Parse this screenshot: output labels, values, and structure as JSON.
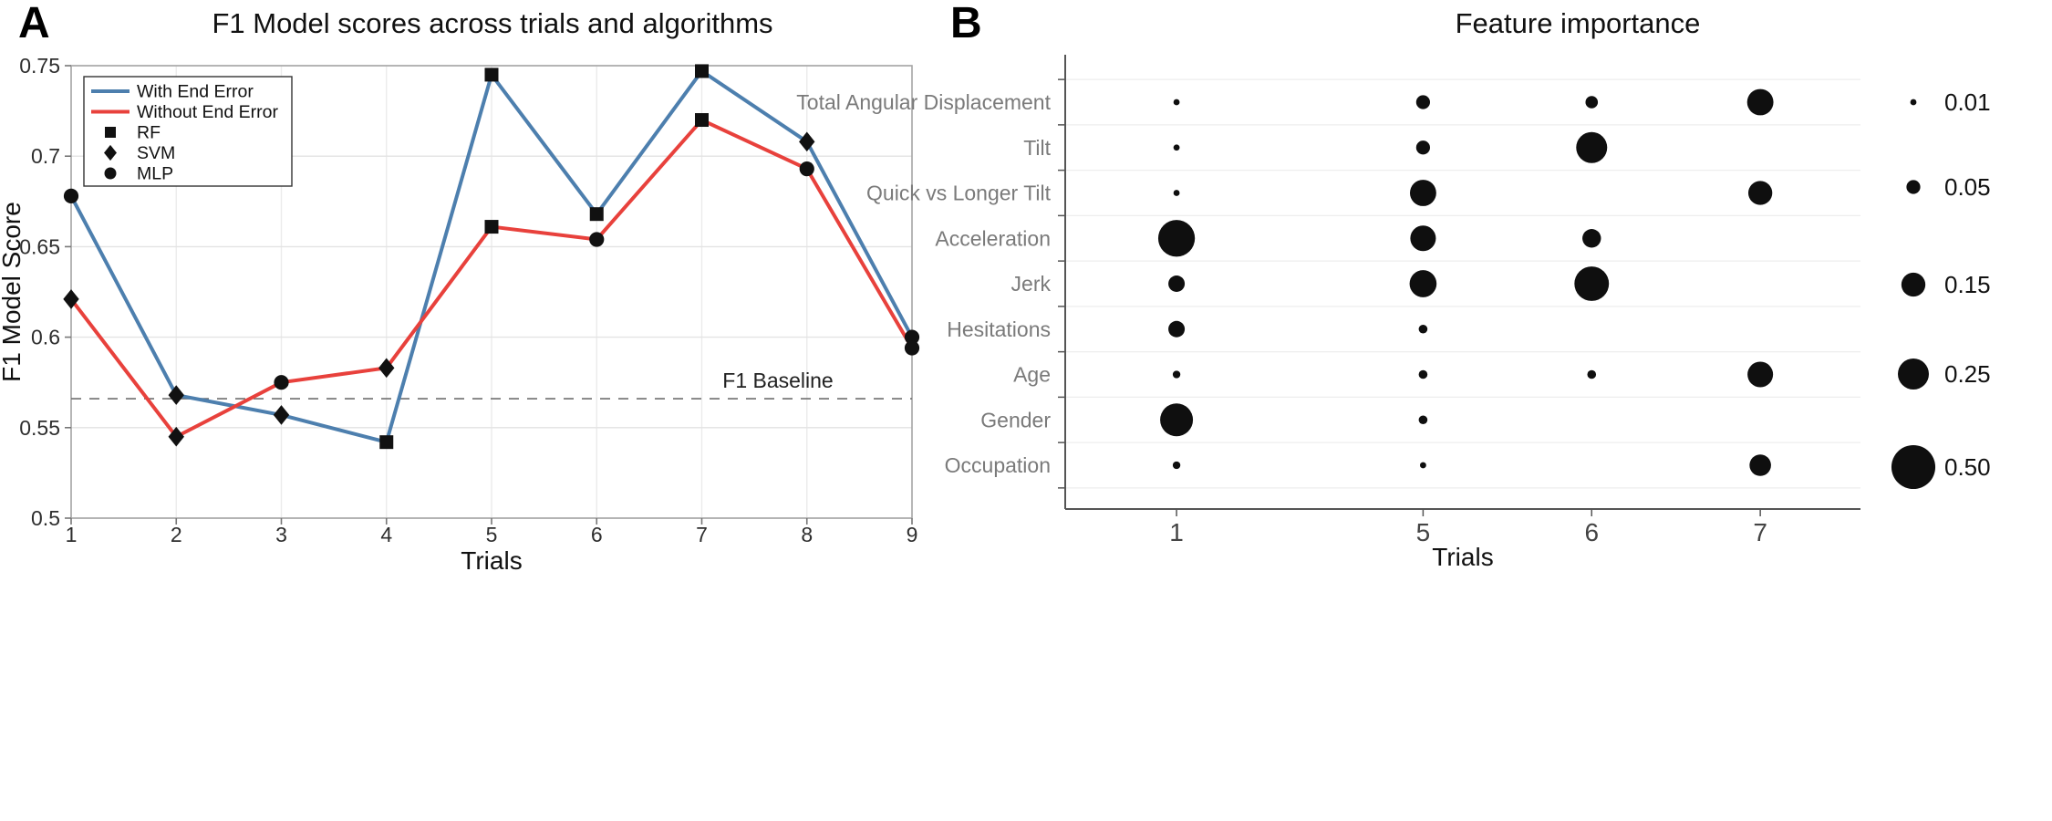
{
  "panels": {
    "a_label": "A",
    "b_label": "B"
  },
  "chart_data": [
    {
      "type": "line",
      "title": "F1 Model scores across trials and algorithms",
      "xlabel": "Trials",
      "ylabel": "F1 Model Score",
      "x": [
        1,
        2,
        3,
        4,
        5,
        6,
        7,
        8,
        9
      ],
      "x_tick_labels": [
        "1",
        "2",
        "3",
        "4",
        "5",
        "6",
        "7",
        "8",
        "9"
      ],
      "ylim": [
        0.5,
        0.75
      ],
      "y_ticks": [
        0.5,
        0.55,
        0.6,
        0.65,
        0.7,
        0.75
      ],
      "y_tick_labels": [
        "0.5",
        "0.55",
        "0.6",
        "0.65",
        "0.7",
        "0.75"
      ],
      "grid": true,
      "legend_position": "top-left",
      "baseline": {
        "value": 0.566,
        "label": "F1 Baseline",
        "style": "dashed"
      },
      "series": [
        {
          "name": "With End Error",
          "color": "#4d7fae",
          "values": [
            0.678,
            0.568,
            0.557,
            0.542,
            0.745,
            0.668,
            0.747,
            0.708,
            0.6
          ],
          "markers": [
            "circle",
            "diamond",
            "diamond",
            "square",
            "square",
            "square",
            "square",
            "diamond",
            "circle"
          ]
        },
        {
          "name": "Without End Error",
          "color": "#e8413c",
          "values": [
            0.621,
            0.545,
            0.575,
            0.583,
            0.661,
            0.654,
            0.72,
            0.693,
            0.594
          ],
          "markers": [
            "diamond",
            "diamond",
            "circle",
            "diamond",
            "square",
            "circle",
            "square",
            "circle",
            "circle"
          ]
        }
      ],
      "marker_key": [
        {
          "label": "RF",
          "marker": "square"
        },
        {
          "label": "SVM",
          "marker": "diamond"
        },
        {
          "label": "MLP",
          "marker": "circle"
        }
      ]
    },
    {
      "type": "scatter",
      "subtype": "bubble",
      "title": "Feature importance",
      "xlabel": "Trials",
      "x_categories": [
        "1",
        "5",
        "6",
        "7"
      ],
      "y_categories": [
        "Total Angular Displacement",
        "Tilt",
        "Quick vs Longer Tilt",
        "Acceleration",
        "Jerk",
        "Hesitations",
        "Age",
        "Gender",
        "Occupation"
      ],
      "values": [
        [
          0.01,
          0.05,
          0.04,
          0.18
        ],
        [
          0.01,
          0.05,
          0.25,
          null
        ],
        [
          0.01,
          0.18,
          null,
          0.15
        ],
        [
          0.35,
          0.17,
          0.09,
          null
        ],
        [
          0.07,
          0.19,
          0.31,
          null
        ],
        [
          0.07,
          0.02,
          null,
          null
        ],
        [
          0.015,
          0.02,
          0.02,
          0.17
        ],
        [
          0.28,
          0.02,
          null,
          null
        ],
        [
          0.015,
          0.01,
          null,
          0.12
        ]
      ],
      "bubble_color": "#0f0f0f",
      "size_legend": [
        {
          "value": 0.01,
          "label": "0.01"
        },
        {
          "value": 0.05,
          "label": "0.05"
        },
        {
          "value": 0.15,
          "label": "0.15"
        },
        {
          "value": 0.25,
          "label": "0.25"
        },
        {
          "value": 0.5,
          "label": "0.50"
        }
      ],
      "legend_position": "right"
    }
  ]
}
